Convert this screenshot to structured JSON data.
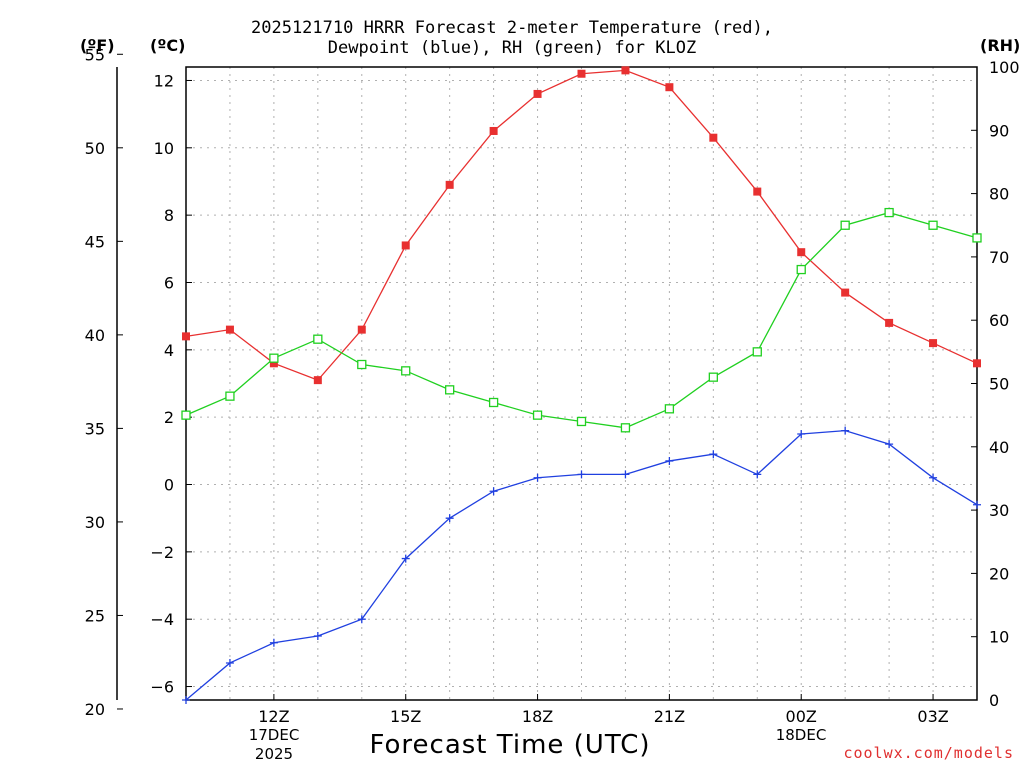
{
  "title": {
    "line1": "2025121710 HRRR Forecast 2-meter Temperature (red),",
    "line2": "Dewpoint (blue), RH (green) for KLOZ"
  },
  "units": {
    "fahrenheit": "(ºF)",
    "celsius": "(ºC)",
    "rh": "(RH)"
  },
  "date_labels": {
    "day1_date": "17DEC",
    "day1_year": "2025",
    "day2_date": "18DEC"
  },
  "x_title": "Forecast Time (UTC)",
  "credit": "coolwx.com/models",
  "colors": {
    "temperature": "#e83030",
    "dewpoint": "#2040e0",
    "rh": "#20d020",
    "grid": "#b0b0b0"
  },
  "chart_data": {
    "type": "line",
    "title": "2025121710 HRRR Forecast 2-meter Temperature (red), Dewpoint (blue), RH (green) for KLOZ",
    "xlabel": "Forecast Time (UTC)",
    "x_hours": [
      10,
      11,
      12,
      13,
      14,
      15,
      16,
      17,
      18,
      19,
      20,
      21,
      22,
      23,
      24,
      25,
      26,
      27,
      28
    ],
    "x_range": [
      10,
      28
    ],
    "x_ticks": [
      {
        "hour": 12,
        "label": "12Z"
      },
      {
        "hour": 15,
        "label": "15Z"
      },
      {
        "hour": 18,
        "label": "18Z"
      },
      {
        "hour": 21,
        "label": "21Z"
      },
      {
        "hour": 24,
        "label": "00Z"
      },
      {
        "hour": 27,
        "label": "03Z"
      }
    ],
    "y_celsius": {
      "range": [
        -6.4,
        12.4
      ],
      "ticks": [
        -6,
        -4,
        -2,
        0,
        2,
        4,
        6,
        8,
        10,
        12
      ]
    },
    "y_fahrenheit": {
      "ticks": [
        20,
        25,
        30,
        35,
        40,
        45,
        50,
        55
      ]
    },
    "y_rh": {
      "range": [
        0,
        100
      ],
      "ticks": [
        0,
        10,
        20,
        30,
        40,
        50,
        60,
        70,
        80,
        90,
        100
      ]
    },
    "series": [
      {
        "name": "Temperature",
        "axis": "celsius",
        "color": "#e83030",
        "marker": "filled-square",
        "values": [
          4.4,
          4.6,
          3.6,
          3.1,
          4.6,
          7.1,
          8.9,
          10.5,
          11.6,
          12.2,
          12.3,
          11.8,
          10.3,
          8.7,
          6.9,
          5.7,
          4.8,
          4.2,
          3.6
        ]
      },
      {
        "name": "Dewpoint",
        "axis": "celsius",
        "color": "#2040e0",
        "marker": "plus",
        "values": [
          -6.4,
          -5.3,
          -4.7,
          -4.5,
          -4.0,
          -2.2,
          -1.0,
          -0.2,
          0.2,
          0.3,
          0.3,
          0.7,
          0.9,
          0.3,
          1.5,
          1.6,
          1.2,
          0.2,
          -0.6
        ]
      },
      {
        "name": "RH",
        "axis": "rh",
        "color": "#20d020",
        "marker": "open-square",
        "values": [
          45,
          48,
          54,
          57,
          53,
          52,
          49,
          47,
          45,
          44,
          43,
          46,
          51,
          55,
          68,
          75,
          77,
          75,
          73
        ]
      }
    ],
    "grid": true
  }
}
